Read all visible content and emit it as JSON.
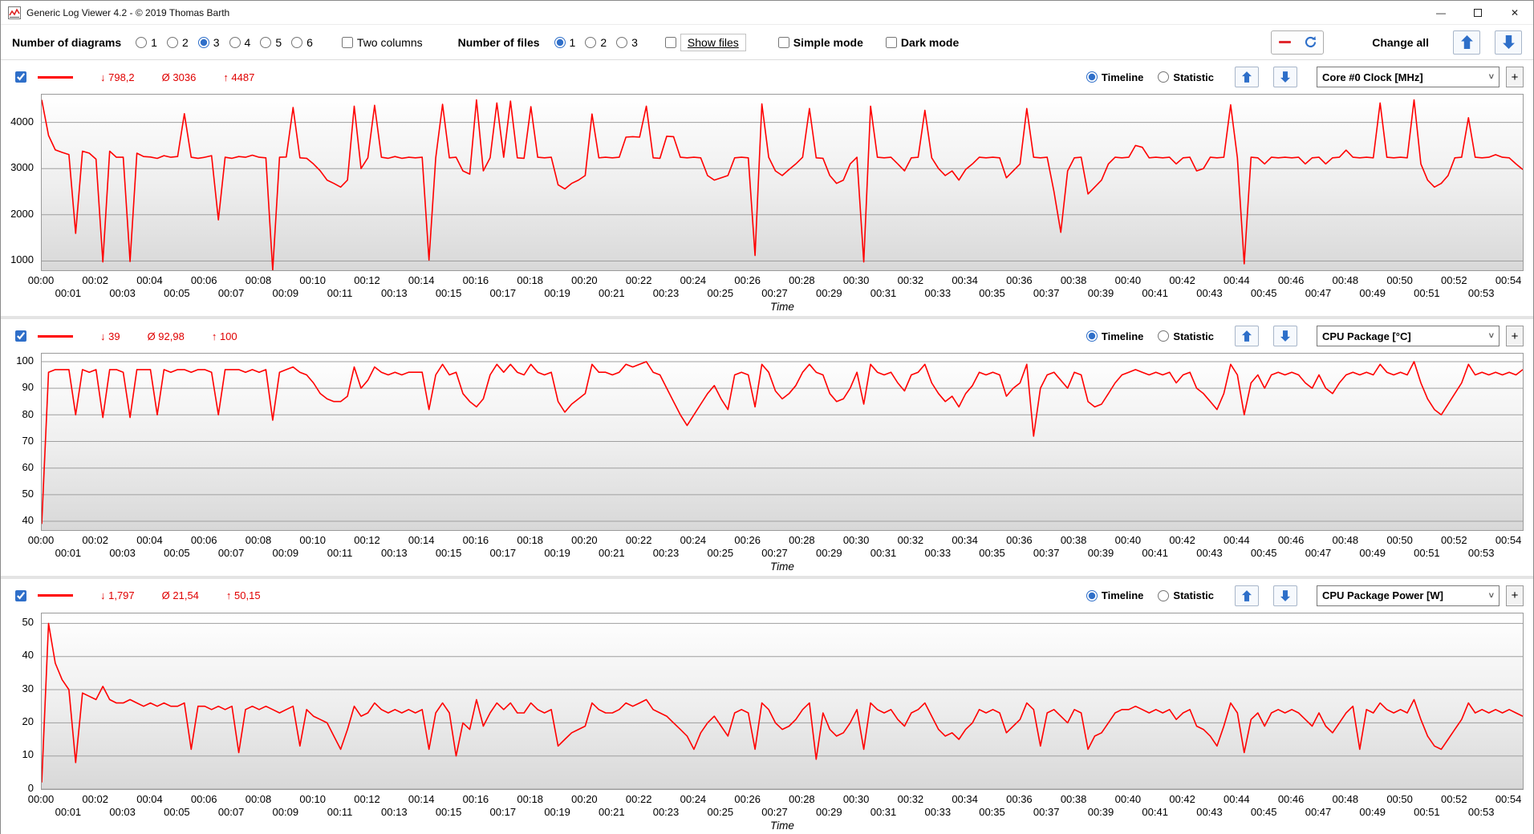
{
  "window": {
    "title": "Generic Log Viewer 4.2 - © 2019 Thomas Barth",
    "minimize": "—",
    "close": "✕"
  },
  "colors": {
    "series": "#ff0000",
    "stat_text": "#e00000",
    "accent_blue": "#2e6fc9",
    "grid": "#9f9f9f"
  },
  "toolbar": {
    "diagrams_label": "Number of diagrams",
    "diagram_options": [
      "1",
      "2",
      "3",
      "4",
      "5",
      "6"
    ],
    "diagram_selected": "3",
    "two_columns_label": "Two columns",
    "files_label": "Number of files",
    "file_options": [
      "1",
      "2",
      "3"
    ],
    "file_selected": "1",
    "show_files_label": "Show files",
    "simple_mode_label": "Simple mode",
    "dark_mode_label": "Dark mode",
    "change_all_label": "Change all"
  },
  "panels": [
    {
      "stats": {
        "min": "↓ 798,2",
        "avg": "Ø 3036",
        "max": "↑ 4487"
      },
      "timeline_label": "Timeline",
      "statistic_label": "Statistic",
      "metric": "Core #0 Clock [MHz]",
      "plus_label": "+"
    },
    {
      "stats": {
        "min": "↓ 39",
        "avg": "Ø 92,98",
        "max": "↑ 100"
      },
      "timeline_label": "Timeline",
      "statistic_label": "Statistic",
      "metric": "CPU Package [°C]",
      "plus_label": "+"
    },
    {
      "stats": {
        "min": "↓ 1,797",
        "avg": "Ø 21,54",
        "max": "↑ 50,15"
      },
      "timeline_label": "Timeline",
      "statistic_label": "Statistic",
      "metric": "CPU Package Power [W]",
      "plus_label": "+"
    }
  ],
  "time_labels": [
    "00:00",
    "00:01",
    "00:02",
    "00:03",
    "00:04",
    "00:05",
    "00:06",
    "00:07",
    "00:08",
    "00:09",
    "00:10",
    "00:11",
    "00:12",
    "00:13",
    "00:14",
    "00:15",
    "00:16",
    "00:17",
    "00:18",
    "00:19",
    "00:20",
    "00:21",
    "00:22",
    "00:23",
    "00:24",
    "00:25",
    "00:26",
    "00:27",
    "00:28",
    "00:29",
    "00:30",
    "00:31",
    "00:32",
    "00:33",
    "00:34",
    "00:35",
    "00:36",
    "00:37",
    "00:38",
    "00:39",
    "00:40",
    "00:41",
    "00:42",
    "00:43",
    "00:44",
    "00:45",
    "00:46",
    "00:47",
    "00:48",
    "00:49",
    "00:50",
    "00:51",
    "00:52",
    "00:53",
    "00:54"
  ],
  "chart_data": [
    {
      "type": "line",
      "title": "Core #0 Clock [MHz]",
      "xlabel": "Time",
      "ylabel": "",
      "series_color": "#ff0000",
      "grid": true,
      "legend_position": "none",
      "stats": {
        "min": 798.2,
        "avg": 3036,
        "max": 4487
      },
      "x_range": [
        0,
        54.5
      ],
      "t_step": 0.25,
      "y_range": [
        800,
        4600
      ],
      "y_ticks": [
        1000,
        2000,
        3000,
        4000
      ],
      "values": [
        4487,
        3716,
        3405,
        3350,
        3302,
        1598,
        3377,
        3333,
        3203,
        980,
        3377,
        3245,
        3245,
        990,
        3333,
        3260,
        3250,
        3220,
        3280,
        3245,
        3260,
        4187,
        3245,
        3222,
        3245,
        3280,
        1890,
        3245,
        3222,
        3260,
        3245,
        3290,
        3245,
        3233,
        800,
        3245,
        3250,
        4320,
        3233,
        3222,
        3100,
        2950,
        2750,
        2680,
        2600,
        2750,
        4350,
        3000,
        3233,
        4370,
        3245,
        3222,
        3260,
        3222,
        3245,
        3233,
        3245,
        1020,
        3233,
        4390,
        3233,
        3245,
        2950,
        2880,
        4487,
        2950,
        3233,
        4420,
        3245,
        4460,
        3233,
        3222,
        4340,
        3245,
        3233,
        3245,
        2650,
        2560,
        2680,
        2750,
        2850,
        4180,
        3233,
        3245,
        3233,
        3245,
        3680,
        3690,
        3680,
        4350,
        3233,
        3222,
        3700,
        3690,
        3245,
        3233,
        3245,
        3233,
        2850,
        2750,
        2800,
        2850,
        3233,
        3245,
        3233,
        1120,
        4400,
        3245,
        2950,
        2850,
        2980,
        3100,
        3245,
        4300,
        3233,
        3222,
        2850,
        2680,
        2750,
        3100,
        3245,
        980,
        4350,
        3245,
        3233,
        3245,
        3100,
        2950,
        3233,
        3245,
        4260,
        3233,
        3000,
        2850,
        2950,
        2750,
        2980,
        3100,
        3245,
        3233,
        3245,
        3233,
        2800,
        2950,
        3100,
        4300,
        3245,
        3233,
        3245,
        2500,
        1620,
        2950,
        3233,
        3245,
        2450,
        2600,
        2750,
        3100,
        3245,
        3233,
        3245,
        3500,
        3460,
        3233,
        3245,
        3233,
        3245,
        3100,
        3233,
        3245,
        2950,
        3000,
        3245,
        3233,
        3245,
        4380,
        3233,
        940,
        3245,
        3233,
        3100,
        3245,
        3233,
        3245,
        3233,
        3245,
        3100,
        3233,
        3245,
        3100,
        3233,
        3245,
        3400,
        3245,
        3233,
        3245,
        3233,
        4420,
        3245,
        3233,
        3245,
        3233,
        4487,
        3100,
        2750,
        2600,
        2680,
        2850,
        3233,
        3245,
        4100,
        3245,
        3233,
        3245,
        3300,
        3245,
        3233,
        3100,
        2980
      ]
    },
    {
      "type": "line",
      "title": "CPU Package [°C]",
      "xlabel": "Time",
      "ylabel": "",
      "series_color": "#ff0000",
      "grid": true,
      "legend_position": "none",
      "stats": {
        "min": 39,
        "avg": 92.98,
        "max": 100
      },
      "x_range": [
        0,
        54.5
      ],
      "t_step": 0.25,
      "y_range": [
        37,
        103
      ],
      "y_ticks": [
        40,
        50,
        60,
        70,
        80,
        90,
        100
      ],
      "values": [
        39,
        96,
        97,
        97,
        97,
        80,
        97,
        96,
        97,
        79,
        97,
        97,
        96,
        79,
        97,
        97,
        97,
        80,
        97,
        96,
        97,
        97,
        96,
        97,
        97,
        96,
        80,
        97,
        97,
        97,
        96,
        97,
        96,
        97,
        78,
        96,
        97,
        98,
        96,
        95,
        92,
        88,
        86,
        85,
        85,
        87,
        98,
        90,
        93,
        98,
        96,
        95,
        96,
        95,
        96,
        96,
        96,
        82,
        95,
        99,
        95,
        96,
        88,
        85,
        83,
        86,
        95,
        99,
        96,
        99,
        96,
        95,
        99,
        96,
        95,
        96,
        85,
        81,
        84,
        86,
        88,
        99,
        96,
        96,
        95,
        96,
        99,
        98,
        99,
        100,
        96,
        95,
        90,
        85,
        80,
        76,
        80,
        84,
        88,
        91,
        86,
        82,
        95,
        96,
        95,
        83,
        99,
        96,
        89,
        86,
        88,
        91,
        96,
        99,
        96,
        95,
        88,
        85,
        86,
        90,
        96,
        84,
        99,
        96,
        95,
        96,
        92,
        89,
        95,
        96,
        99,
        92,
        88,
        85,
        87,
        83,
        88,
        91,
        96,
        95,
        96,
        95,
        87,
        90,
        92,
        99,
        72,
        90,
        95,
        96,
        93,
        90,
        96,
        95,
        85,
        83,
        84,
        88,
        92,
        95,
        96,
        97,
        96,
        95,
        96,
        95,
        96,
        92,
        95,
        96,
        90,
        88,
        85,
        82,
        88,
        99,
        95,
        80,
        92,
        95,
        90,
        95,
        96,
        95,
        96,
        95,
        92,
        90,
        95,
        90,
        88,
        92,
        95,
        96,
        95,
        96,
        95,
        99,
        96,
        95,
        96,
        95,
        100,
        92,
        86,
        82,
        80,
        84,
        88,
        92,
        99,
        95,
        96,
        95,
        96,
        95,
        96,
        95,
        97
      ]
    },
    {
      "type": "line",
      "title": "CPU Package Power [W]",
      "xlabel": "Time",
      "ylabel": "",
      "series_color": "#ff0000",
      "grid": true,
      "legend_position": "none",
      "stats": {
        "min": 1.797,
        "avg": 21.54,
        "max": 50.15
      },
      "x_range": [
        0,
        54.5
      ],
      "t_step": 0.25,
      "y_range": [
        0,
        53
      ],
      "y_ticks": [
        0,
        10,
        20,
        30,
        40,
        50
      ],
      "values": [
        2,
        50,
        38,
        33,
        30,
        8,
        29,
        28,
        27,
        31,
        27,
        26,
        26,
        27,
        26,
        25,
        26,
        25,
        26,
        25,
        25,
        26,
        12,
        25,
        25,
        24,
        25,
        24,
        25,
        11,
        24,
        25,
        24,
        25,
        24,
        23,
        24,
        25,
        13,
        24,
        22,
        21,
        20,
        16,
        12,
        18,
        25,
        22,
        23,
        26,
        24,
        23,
        24,
        23,
        24,
        23,
        24,
        12,
        23,
        26,
        23,
        10,
        20,
        18,
        27,
        19,
        23,
        26,
        24,
        26,
        23,
        23,
        26,
        24,
        23,
        24,
        13,
        15,
        17,
        18,
        19,
        26,
        24,
        23,
        23,
        24,
        26,
        25,
        26,
        27,
        24,
        23,
        22,
        20,
        18,
        16,
        12,
        17,
        20,
        22,
        19,
        16,
        23,
        24,
        23,
        12,
        26,
        24,
        20,
        18,
        19,
        21,
        24,
        26,
        9,
        23,
        18,
        16,
        17,
        20,
        24,
        12,
        26,
        24,
        23,
        24,
        21,
        19,
        23,
        24,
        26,
        22,
        18,
        16,
        17,
        15,
        18,
        20,
        24,
        23,
        24,
        23,
        17,
        19,
        21,
        26,
        24,
        13,
        23,
        24,
        22,
        20,
        24,
        23,
        12,
        16,
        17,
        20,
        23,
        24,
        24,
        25,
        24,
        23,
        24,
        23,
        24,
        21,
        23,
        24,
        19,
        18,
        16,
        13,
        19,
        26,
        23,
        11,
        21,
        23,
        19,
        23,
        24,
        23,
        24,
        23,
        21,
        19,
        23,
        19,
        17,
        20,
        23,
        25,
        12,
        24,
        23,
        26,
        24,
        23,
        24,
        23,
        27,
        21,
        16,
        13,
        12,
        15,
        18,
        21,
        26,
        23,
        24,
        23,
        24,
        23,
        24,
        23,
        22
      ]
    }
  ]
}
